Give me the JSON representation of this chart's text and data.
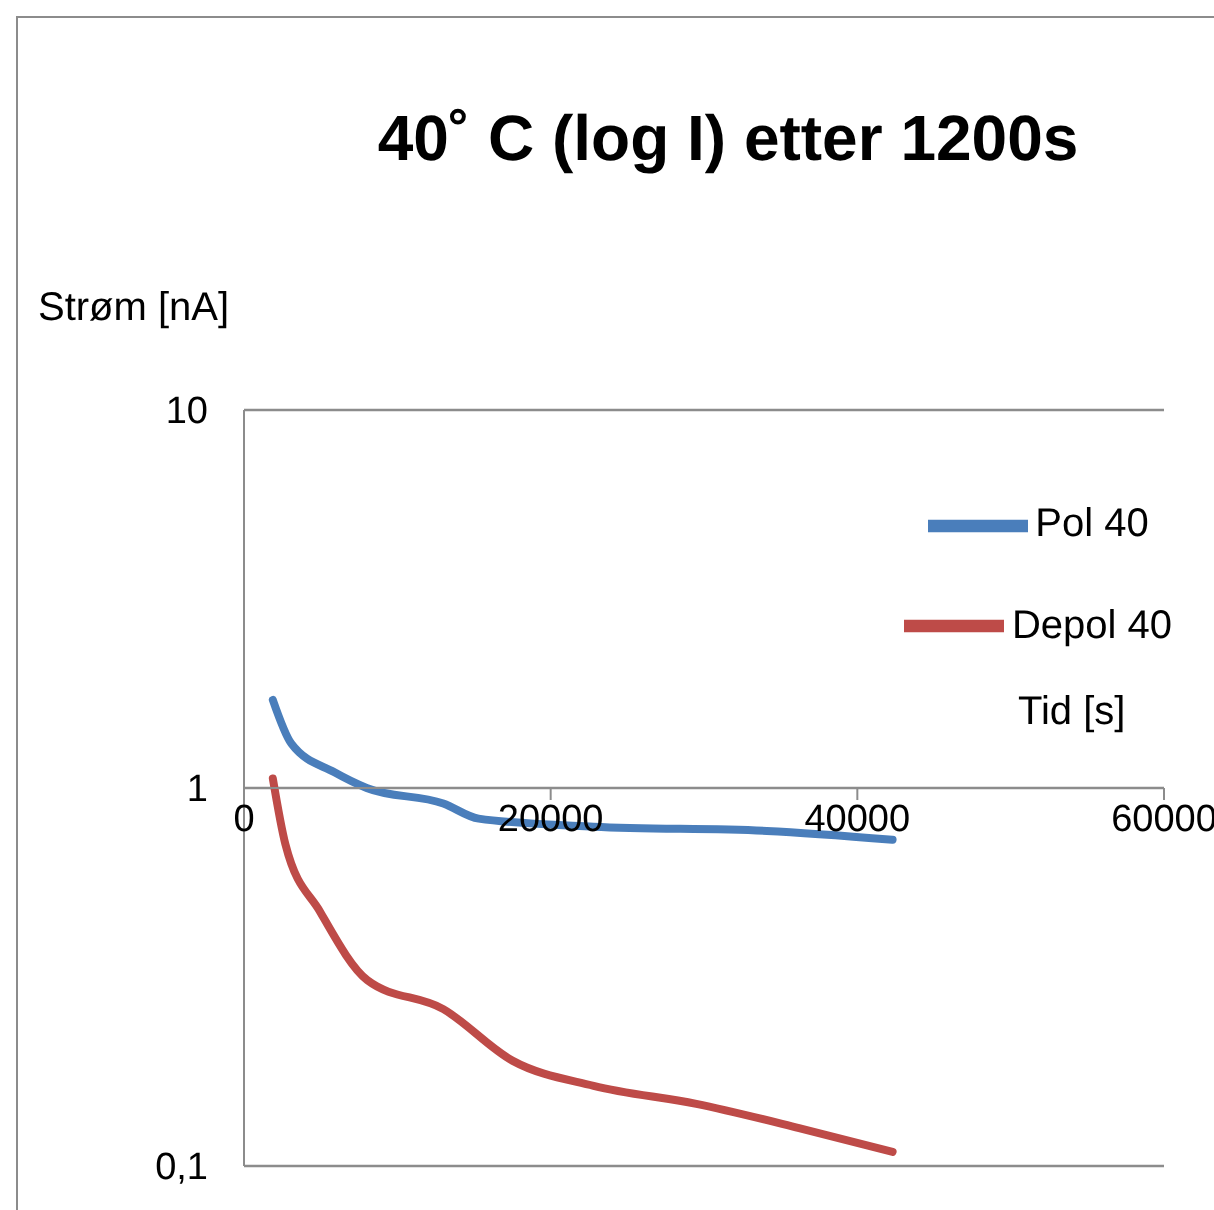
{
  "chart_data": {
    "type": "line",
    "title": "40˚ C (log I) etter 1200s",
    "xlabel": "Tid [s]",
    "ylabel": "Strøm [nA]",
    "xlim": [
      0,
      60000
    ],
    "xticks": [
      0,
      20000,
      40000,
      60000
    ],
    "ylim": [
      0.1,
      10
    ],
    "yticks": [
      {
        "value": 0.1,
        "label": "0,1"
      },
      1,
      10
    ],
    "log": "y",
    "grid": "y",
    "legend": "right",
    "marker": "none",
    "line_style": "solid",
    "series": [
      {
        "name": "Pol 40",
        "color": "#4a7ebb",
        "x": [
          1880,
          3090,
          5900,
          8000,
          13000,
          15300,
          22800,
          34100,
          42300
        ],
        "values": [
          1.71,
          1.31,
          1.1,
          1.0,
          0.91,
          0.83,
          0.79,
          0.77,
          0.73
        ]
      },
      {
        "name": "Depol 40",
        "color": "#be4b48",
        "x": [
          1880,
          2700,
          4970,
          8050,
          13000,
          17500,
          22800,
          29500,
          36200,
          42300
        ],
        "values": [
          1.06,
          0.71,
          0.47,
          0.31,
          0.26,
          0.19,
          0.163,
          0.146,
          0.126,
          0.109
        ]
      }
    ]
  }
}
